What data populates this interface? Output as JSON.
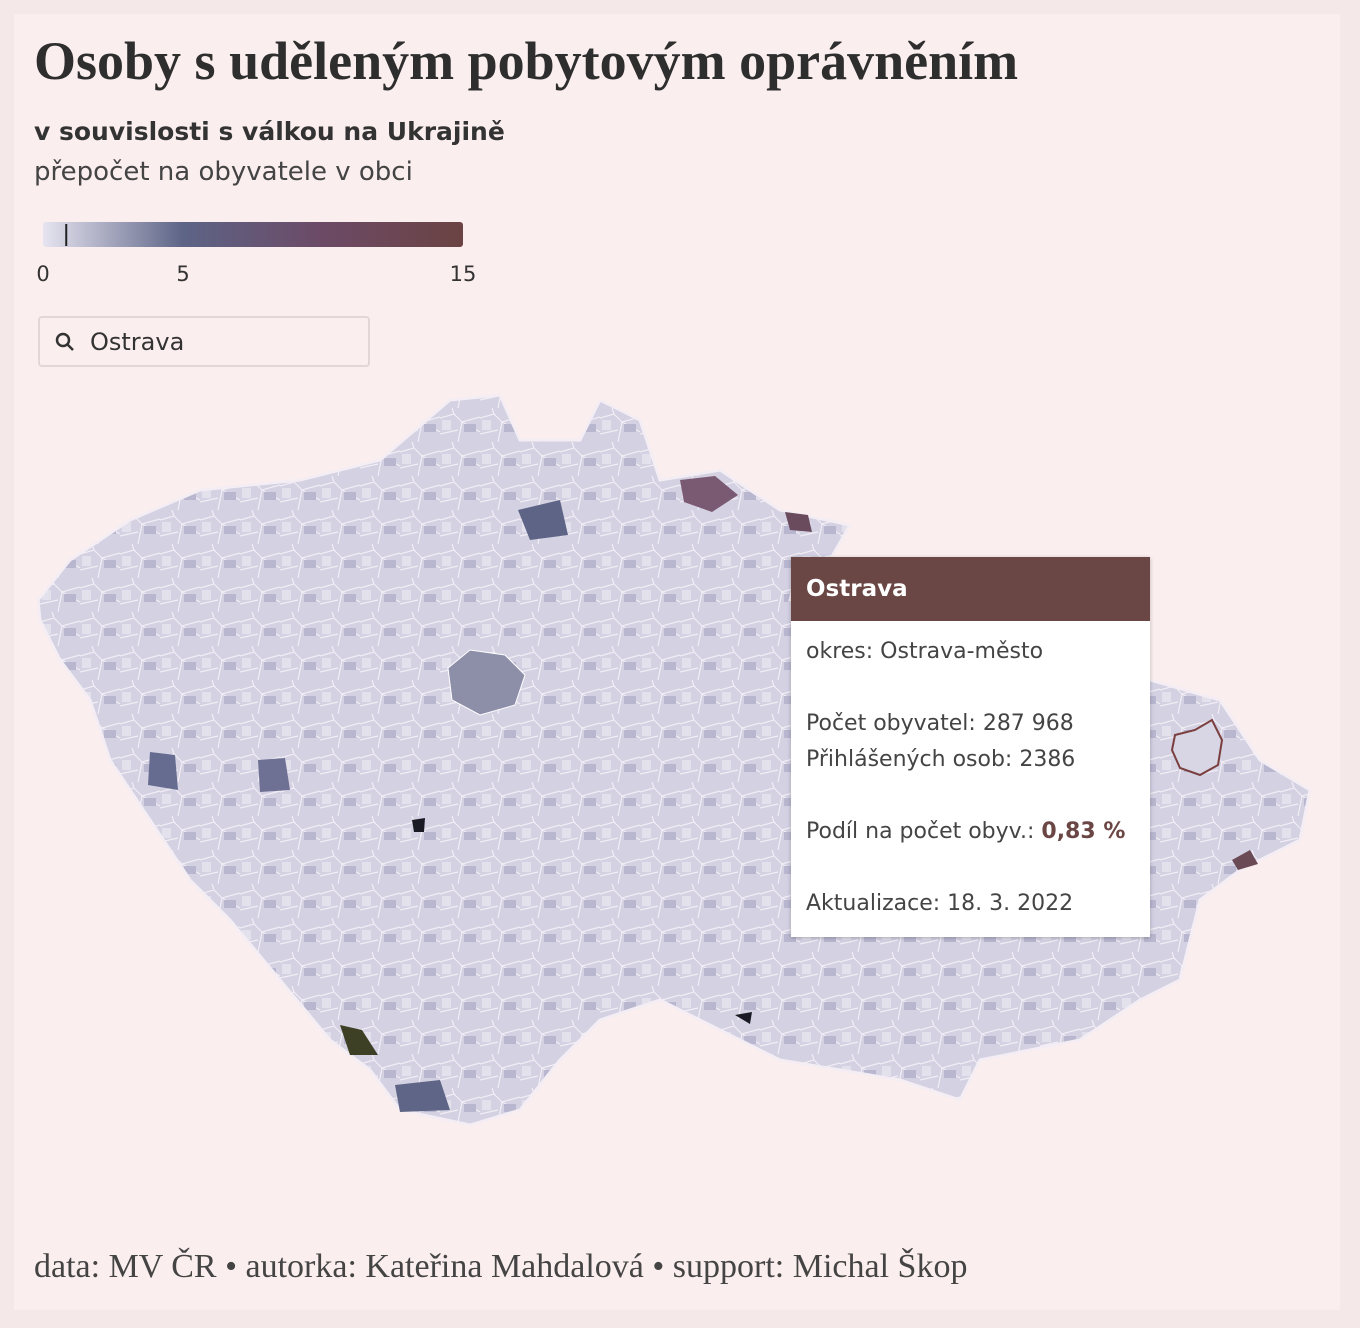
{
  "header": {
    "title": "Osoby s uděleným pobytovým oprávněním",
    "subtitle": "v souvislosti s válkou na Ukrajině",
    "description": "přepočet na obyvatele v obci"
  },
  "legend": {
    "range": [
      0,
      15
    ],
    "ticks": [
      0,
      5,
      15
    ],
    "colors": [
      "#e6e4f0",
      "#5d6486",
      "#6c4a66",
      "#6b4343"
    ]
  },
  "search": {
    "value": "Ostrava"
  },
  "tooltip": {
    "title": "Ostrava",
    "district": "okres: Ostrava-město",
    "population": "Počet obyvatel: 287 968",
    "registered": "Přihlášených osob: 2386",
    "share_label": "Podíl na počet obyv.:",
    "share": {
      "value": 0.83,
      "label": "0,83 %"
    },
    "updated": "Aktualizace: 18. 3. 2022"
  },
  "footer": "data: MV ČR • autorka: Kateřina Mahdalová • support: Michal Škop"
}
